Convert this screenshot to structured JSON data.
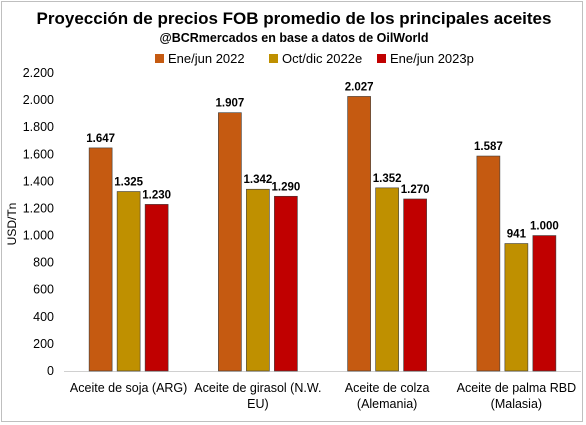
{
  "chart_data": {
    "type": "bar",
    "title": "Proyección de precios FOB promedio de los principales aceites",
    "subtitle": "@BCRmercados en base a datos de OilWorld",
    "ylabel": "USD/Tn",
    "ylim": [
      0,
      2200
    ],
    "yticks": [
      0,
      200,
      400,
      600,
      800,
      1000,
      1200,
      1400,
      1600,
      1800,
      2000,
      2200
    ],
    "ytick_labels": [
      "0",
      "200",
      "400",
      "600",
      "800",
      "1.000",
      "1.200",
      "1.400",
      "1.600",
      "1.800",
      "2.000",
      "2.200"
    ],
    "grid": false,
    "legend_position": "top",
    "categories": [
      [
        "Aceite de soja (ARG)"
      ],
      [
        "Aceite de girasol (N.W.",
        "EU)"
      ],
      [
        "Aceite de colza",
        "(Alemania)"
      ],
      [
        "Aceite de palma RBD",
        "(Malasia)"
      ]
    ],
    "series": [
      {
        "name": "Ene/jun 2022",
        "color": "#C55A11",
        "values": [
          1647,
          1907,
          2027,
          1587
        ],
        "labels": [
          "1.647",
          "1.907",
          "2.027",
          "1.587"
        ]
      },
      {
        "name": "Oct/dic 2022e",
        "color": "#BF9000",
        "values": [
          1325,
          1342,
          1352,
          941
        ],
        "labels": [
          "1.325",
          "1.342",
          "1.352",
          "941"
        ]
      },
      {
        "name": "Ene/jun 2023p",
        "color": "#C00000",
        "values": [
          1230,
          1290,
          1270,
          1000
        ],
        "labels": [
          "1.230",
          "1.290",
          "1.270",
          "1.000"
        ]
      }
    ]
  }
}
